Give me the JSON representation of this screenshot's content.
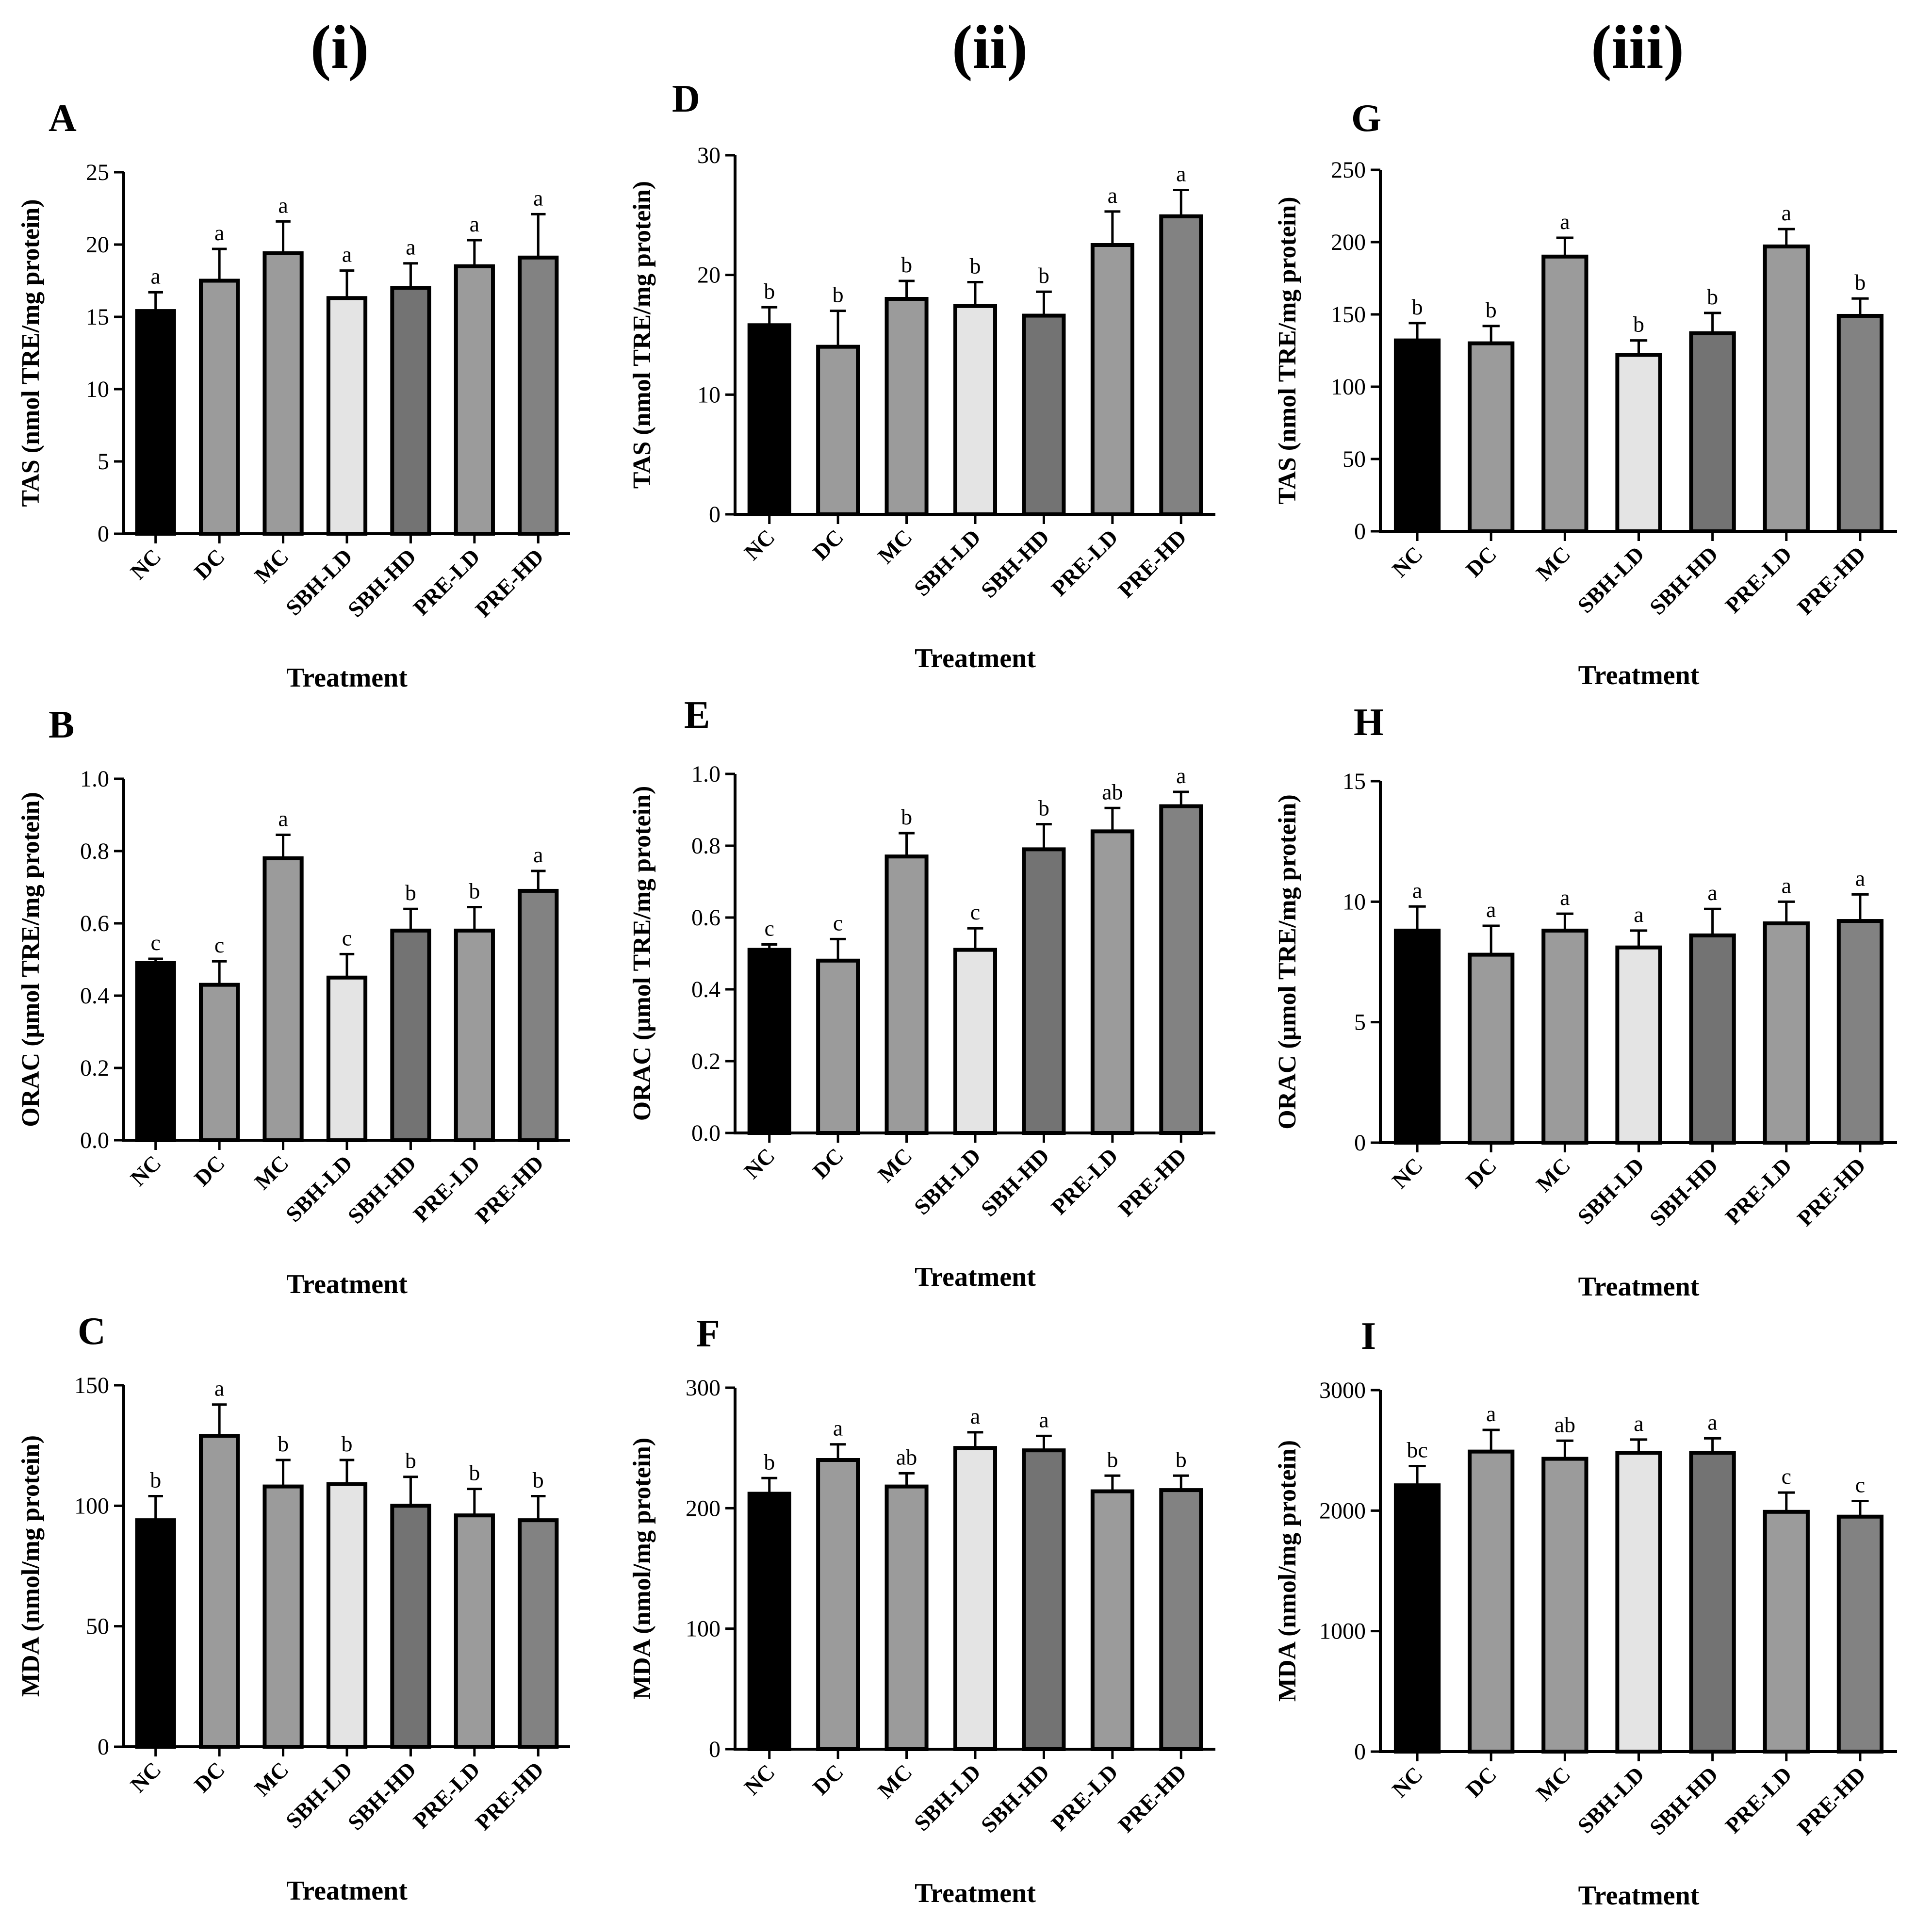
{
  "column_headers": [
    "(i)",
    "(ii)",
    "(iii)"
  ],
  "colors": {
    "bars": [
      "#000000",
      "#9b9b9b",
      "#9b9b9b",
      "#e4e4e4",
      "#737373",
      "#9b9b9b",
      "#828282"
    ],
    "stroke": "#000000"
  },
  "chart_data": [
    {
      "panel": "A",
      "type": "bar",
      "title": "",
      "ylabel": "TAS (nmol TRE/mg protein)",
      "xlabel": "Treatment",
      "categories": [
        "NC",
        "DC",
        "MC",
        "SBH-LD",
        "SBH-HD",
        "PRE-LD",
        "PRE-HD"
      ],
      "values": [
        15.4,
        17.5,
        19.4,
        16.3,
        17.0,
        18.5,
        19.1
      ],
      "errors": [
        1.3,
        2.2,
        2.2,
        1.9,
        1.7,
        1.8,
        3.0
      ],
      "significance": [
        "a",
        "a",
        "a",
        "a",
        "a",
        "a",
        "a"
      ],
      "ylim": [
        0,
        25
      ],
      "yticks": [
        0,
        5,
        10,
        15,
        20,
        25
      ],
      "ytick_labels": [
        "0",
        "5",
        "10",
        "15",
        "20",
        "25"
      ]
    },
    {
      "panel": "B",
      "type": "bar",
      "title": "",
      "ylabel": "ORAC (μmol TRE/mg protein)",
      "xlabel": "Treatment",
      "categories": [
        "NC",
        "DC",
        "MC",
        "SBH-LD",
        "SBH-HD",
        "PRE-LD",
        "PRE-HD"
      ],
      "values": [
        0.49,
        0.43,
        0.78,
        0.45,
        0.58,
        0.58,
        0.69
      ],
      "errors": [
        0.012,
        0.065,
        0.065,
        0.065,
        0.06,
        0.065,
        0.055
      ],
      "significance": [
        "c",
        "c",
        "a",
        "c",
        "b",
        "b",
        "a"
      ],
      "ylim": [
        0,
        1.0
      ],
      "yticks": [
        0,
        0.2,
        0.4,
        0.6,
        0.8,
        1.0
      ],
      "ytick_labels": [
        "0.0",
        "0.2",
        "0.4",
        "0.6",
        "0.8",
        "1.0"
      ]
    },
    {
      "panel": "C",
      "type": "bar",
      "title": "",
      "ylabel": "MDA (nmol/mg protein)",
      "xlabel": "Treatment",
      "categories": [
        "NC",
        "DC",
        "MC",
        "SBH-LD",
        "SBH-HD",
        "PRE-LD",
        "PRE-HD"
      ],
      "values": [
        94,
        129,
        108,
        109,
        100,
        96,
        94
      ],
      "errors": [
        10,
        13,
        11,
        10,
        12,
        11,
        10
      ],
      "significance": [
        "b",
        "a",
        "b",
        "b",
        "b",
        "b",
        "b"
      ],
      "ylim": [
        0,
        150
      ],
      "yticks": [
        0,
        50,
        100,
        150
      ],
      "ytick_labels": [
        "0",
        "50",
        "100",
        "150"
      ]
    },
    {
      "panel": "D",
      "type": "bar",
      "title": "",
      "ylabel": "TAS (nmol TRE/mg protein)",
      "xlabel": "Treatment",
      "categories": [
        "NC",
        "DC",
        "MC",
        "SBH-LD",
        "SBH-HD",
        "PRE-LD",
        "PRE-HD"
      ],
      "values": [
        15.8,
        14.0,
        18.0,
        17.4,
        16.6,
        22.5,
        24.9
      ],
      "errors": [
        1.5,
        3.0,
        1.5,
        2.0,
        2.0,
        2.8,
        2.2
      ],
      "significance": [
        "b",
        "b",
        "b",
        "b",
        "b",
        "a",
        "a"
      ],
      "ylim": [
        0,
        30
      ],
      "yticks": [
        0,
        10,
        20,
        30
      ],
      "ytick_labels": [
        "0",
        "10",
        "20",
        "30"
      ]
    },
    {
      "panel": "E",
      "type": "bar",
      "title": "",
      "ylabel": "ORAC (μmol TRE/mg protein)",
      "xlabel": "Treatment",
      "categories": [
        "NC",
        "DC",
        "MC",
        "SBH-LD",
        "SBH-HD",
        "PRE-LD",
        "PRE-HD"
      ],
      "values": [
        0.51,
        0.48,
        0.77,
        0.51,
        0.79,
        0.84,
        0.91
      ],
      "errors": [
        0.015,
        0.06,
        0.065,
        0.06,
        0.07,
        0.065,
        0.04
      ],
      "significance": [
        "c",
        "c",
        "b",
        "c",
        "b",
        "ab",
        "a"
      ],
      "ylim": [
        0,
        1.0
      ],
      "yticks": [
        0,
        0.2,
        0.4,
        0.6,
        0.8,
        1.0
      ],
      "ytick_labels": [
        "0.0",
        "0.2",
        "0.4",
        "0.6",
        "0.8",
        "1.0"
      ]
    },
    {
      "panel": "F",
      "type": "bar",
      "title": "",
      "ylabel": "MDA (nmol/mg protein)",
      "xlabel": "Treatment",
      "categories": [
        "NC",
        "DC",
        "MC",
        "SBH-LD",
        "SBH-HD",
        "PRE-LD",
        "PRE-HD"
      ],
      "values": [
        212,
        240,
        218,
        250,
        248,
        214,
        215
      ],
      "errors": [
        13,
        13,
        11,
        13,
        12,
        13,
        12
      ],
      "significance": [
        "b",
        "a",
        "ab",
        "a",
        "a",
        "b",
        "b"
      ],
      "ylim": [
        0,
        300
      ],
      "yticks": [
        0,
        100,
        200,
        300
      ],
      "ytick_labels": [
        "0",
        "100",
        "200",
        "300"
      ]
    },
    {
      "panel": "G",
      "type": "bar",
      "title": "",
      "ylabel": "TAS (nmol TRE/mg protein)",
      "xlabel": "Treatment",
      "categories": [
        "NC",
        "DC",
        "MC",
        "SBH-LD",
        "SBH-HD",
        "PRE-LD",
        "PRE-HD"
      ],
      "values": [
        132,
        130,
        190,
        122,
        137,
        197,
        149
      ],
      "errors": [
        12,
        12,
        13,
        10,
        14,
        12,
        12
      ],
      "significance": [
        "b",
        "b",
        "a",
        "b",
        "b",
        "a",
        "b"
      ],
      "ylim": [
        0,
        250
      ],
      "yticks": [
        0,
        50,
        100,
        150,
        200,
        250
      ],
      "ytick_labels": [
        "0",
        "50",
        "100",
        "150",
        "200",
        "250"
      ]
    },
    {
      "panel": "H",
      "type": "bar",
      "title": "",
      "ylabel": "ORAC (μmol TRE/mg protein)",
      "xlabel": "Treatment",
      "categories": [
        "NC",
        "DC",
        "MC",
        "SBH-LD",
        "SBH-HD",
        "PRE-LD",
        "PRE-HD"
      ],
      "values": [
        8.8,
        7.8,
        8.8,
        8.1,
        8.6,
        9.1,
        9.2
      ],
      "errors": [
        1.0,
        1.2,
        0.7,
        0.7,
        1.1,
        0.9,
        1.1
      ],
      "significance": [
        "a",
        "a",
        "a",
        "a",
        "a",
        "a",
        "a"
      ],
      "ylim": [
        0,
        15
      ],
      "yticks": [
        0,
        5,
        10,
        15
      ],
      "ytick_labels": [
        "0",
        "5",
        "10",
        "15"
      ]
    },
    {
      "panel": "I",
      "type": "bar",
      "title": "",
      "ylabel": "MDA (nmol/mg protein)",
      "xlabel": "Treatment",
      "categories": [
        "NC",
        "DC",
        "MC",
        "SBH-LD",
        "SBH-HD",
        "PRE-LD",
        "PRE-HD"
      ],
      "values": [
        2210,
        2490,
        2430,
        2480,
        2480,
        1990,
        1950
      ],
      "errors": [
        160,
        180,
        150,
        110,
        120,
        160,
        130
      ],
      "significance": [
        "bc",
        "a",
        "ab",
        "a",
        "a",
        "c",
        "c"
      ],
      "ylim": [
        0,
        3000
      ],
      "yticks": [
        0,
        1000,
        2000,
        3000
      ],
      "ytick_labels": [
        "0",
        "1000",
        "2000",
        "3000"
      ]
    }
  ]
}
